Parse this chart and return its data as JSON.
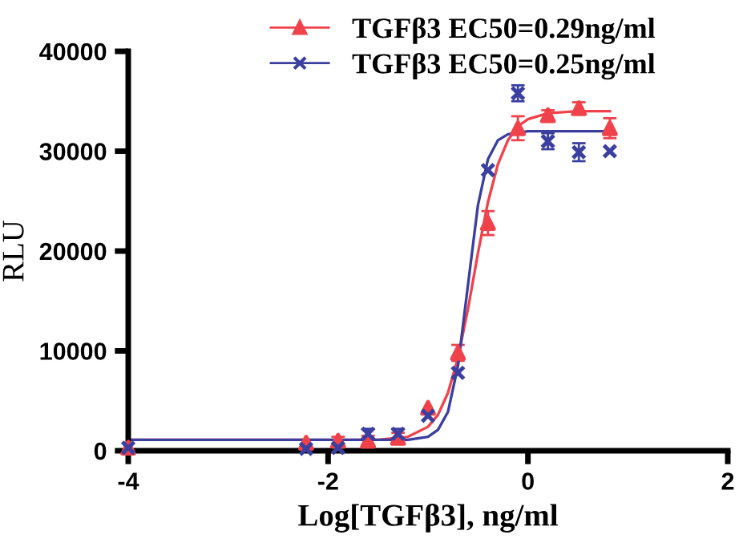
{
  "chart_data": {
    "type": "scatter",
    "xlabel": "Log[TGFβ3], ng/ml",
    "ylabel": "RLU",
    "xlim": [
      -4,
      2
    ],
    "xticks": [
      -4,
      -2,
      0,
      2
    ],
    "ylim": [
      0,
      40000
    ],
    "yticks": [
      0,
      10000,
      20000,
      30000,
      40000
    ],
    "grid": false,
    "legend": "top",
    "series": [
      {
        "name": "TGFβ3 EC50=0.29ng/ml",
        "marker": "triangle",
        "color": "#f0424a",
        "x": [
          -4,
          -2.22,
          -1.9,
          -1.6,
          -1.3,
          -1.0,
          -0.7,
          -0.4,
          -0.1,
          0.2,
          0.51,
          0.82
        ],
        "values": [
          300,
          800,
          1000,
          1000,
          1300,
          4300,
          9800,
          22800,
          32300,
          33600,
          34300,
          32300
        ],
        "errors": [
          null,
          null,
          400,
          500,
          500,
          null,
          800,
          1200,
          1200,
          500,
          600,
          1000
        ]
      },
      {
        "name": "TGFβ3 EC50=0.25ng/ml",
        "marker": "cross",
        "color": "#3a3fa0",
        "x": [
          -4,
          -2.22,
          -1.9,
          -1.6,
          -1.3,
          -1.0,
          -0.7,
          -0.4,
          -0.1,
          0.2,
          0.51,
          0.82
        ],
        "values": [
          300,
          200,
          300,
          1700,
          1700,
          3500,
          7800,
          28100,
          35800,
          31000,
          29900,
          30000
        ],
        "errors": [
          null,
          null,
          null,
          500,
          500,
          null,
          null,
          null,
          800,
          800,
          900,
          null
        ]
      },
      {
        "type": "line",
        "color": "#f0424a",
        "x": [
          -4,
          -2,
          -1.5,
          -1.2,
          -1.0,
          -0.9,
          -0.8,
          -0.7,
          -0.6,
          -0.5,
          -0.4,
          -0.3,
          -0.2,
          -0.1,
          0,
          0.2,
          0.5,
          0.82
        ],
        "values": [
          1100,
          1100,
          1100,
          1400,
          2400,
          3600,
          5800,
          9300,
          14200,
          19800,
          24900,
          28700,
          31100,
          32500,
          33200,
          33800,
          34000,
          34000
        ]
      },
      {
        "type": "line",
        "color": "#3a3fa0",
        "x": [
          -4,
          -2,
          -1.2,
          -1.0,
          -0.9,
          -0.8,
          -0.7,
          -0.6,
          -0.5,
          -0.4,
          -0.3,
          -0.2,
          0,
          0.4,
          0.82
        ],
        "values": [
          1100,
          1100,
          1100,
          1400,
          2100,
          3900,
          8500,
          16600,
          24600,
          29200,
          31100,
          31700,
          32000,
          32000,
          32000
        ]
      }
    ]
  }
}
